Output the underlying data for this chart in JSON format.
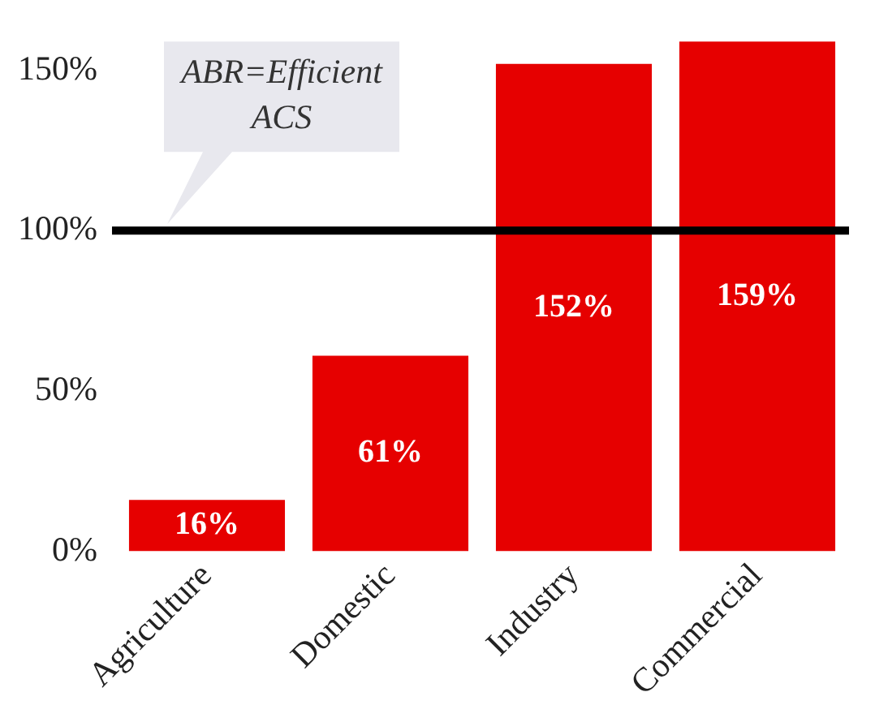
{
  "chart_data": {
    "type": "bar",
    "categories": [
      "Agriculture",
      "Domestic",
      "Industry",
      "Commercial"
    ],
    "values": [
      16,
      61,
      152,
      159
    ],
    "color": "#e60000",
    "value_labels": [
      "16%",
      "61%",
      "152%",
      "159%"
    ],
    "ylim": [
      0,
      160
    ],
    "yticks": [
      {
        "value": 0,
        "label": "0%"
      },
      {
        "value": 50,
        "label": "50%"
      },
      {
        "value": 100,
        "label": "100%"
      },
      {
        "value": 150,
        "label": "150%"
      }
    ],
    "grid": false,
    "legend": false,
    "ref_lines": [
      {
        "axis": "y",
        "value": 100,
        "color": "#000000"
      }
    ],
    "annotations": [
      {
        "text": "ABR=Efficient ACS",
        "y": 100
      }
    ]
  }
}
